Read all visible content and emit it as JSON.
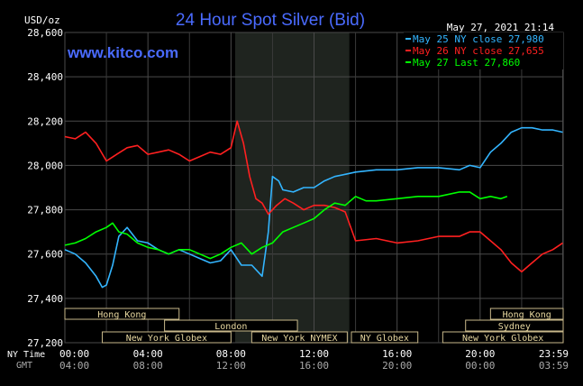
{
  "chart_data": {
    "type": "line",
    "title": "24 Hour Spot Silver (Bid)",
    "watermark": "www.kitco.com",
    "timestamp": "May 27, 2021 21:14",
    "ylabel": "USD/oz",
    "ylim": [
      27.2,
      28.6
    ],
    "yticks": [
      "28,600",
      "28,400",
      "28,200",
      "28,000",
      "27,800",
      "27,600",
      "27,400",
      "27,200"
    ],
    "yticks_values": [
      28.6,
      28.4,
      28.2,
      28.0,
      27.8,
      27.6,
      27.4,
      27.2
    ],
    "x_range_hours": [
      0,
      24
    ],
    "xticks_ny": [
      "00:00",
      "04:00",
      "08:00",
      "12:00",
      "16:00",
      "20:00",
      "23:59"
    ],
    "xticks_gmt": [
      "04:00",
      "08:00",
      "12:00",
      "16:00",
      "20:00",
      "00:00",
      "03:59"
    ],
    "xticks_hours": [
      0,
      4,
      8,
      12,
      16,
      20,
      23.98
    ],
    "ny_time_label": "NY Time",
    "gmt_label": "GMT",
    "nymex_hours": [
      8.2,
      13.7
    ],
    "markets": [
      {
        "label": "Hong Kong",
        "start": 0,
        "end": 5.5,
        "row": 0
      },
      {
        "label": "Hong Kong",
        "start": 20.5,
        "end": 24,
        "row": 0
      },
      {
        "label": "London",
        "start": 4.8,
        "end": 11.2,
        "row": 1
      },
      {
        "label": "Sydney",
        "start": 19.3,
        "end": 24,
        "row": 1
      },
      {
        "label": "New York Globex",
        "start": 1.8,
        "end": 8.0,
        "row": 2
      },
      {
        "label": "New York NYMEX",
        "start": 9.0,
        "end": 13.6,
        "row": 2
      },
      {
        "label": "NY Globex",
        "start": 13.8,
        "end": 17.0,
        "row": 2
      },
      {
        "label": "New York Globex",
        "start": 18.2,
        "end": 24,
        "row": 2
      }
    ],
    "legend_position": "top-right",
    "series": [
      {
        "name": "May 25",
        "legend": "May 25 NY close 27,980",
        "color": "#33b5ff",
        "x": [
          0,
          0.5,
          1.0,
          1.5,
          1.8,
          2.0,
          2.3,
          2.6,
          3.0,
          3.5,
          4.0,
          4.5,
          5.0,
          5.5,
          6.0,
          6.5,
          7.0,
          7.5,
          8.0,
          8.5,
          9.0,
          9.5,
          9.8,
          10.0,
          10.3,
          10.5,
          11.0,
          11.5,
          12.0,
          12.5,
          13.0,
          13.5,
          14.0,
          15.0,
          16.0,
          17.0,
          18.0,
          19.0,
          19.5,
          20.0,
          20.5,
          21.0,
          21.5,
          22.0,
          22.5,
          23.0,
          23.5,
          23.98
        ],
        "values": [
          27.62,
          27.6,
          27.56,
          27.5,
          27.45,
          27.46,
          27.55,
          27.68,
          27.72,
          27.66,
          27.65,
          27.62,
          27.6,
          27.62,
          27.6,
          27.58,
          27.56,
          27.57,
          27.62,
          27.55,
          27.55,
          27.5,
          27.7,
          27.95,
          27.93,
          27.89,
          27.88,
          27.9,
          27.9,
          27.93,
          27.95,
          27.96,
          27.97,
          27.98,
          27.98,
          27.99,
          27.99,
          27.98,
          28.0,
          27.99,
          28.06,
          28.1,
          28.15,
          28.17,
          28.17,
          28.16,
          28.16,
          28.15
        ]
      },
      {
        "name": "May 26",
        "legend": "May 26 NY close 27,655",
        "color": "#ff2020",
        "x": [
          0,
          0.5,
          1.0,
          1.5,
          2.0,
          2.5,
          3.0,
          3.5,
          4.0,
          4.5,
          5.0,
          5.5,
          6.0,
          6.5,
          7.0,
          7.5,
          8.0,
          8.3,
          8.6,
          8.9,
          9.2,
          9.5,
          9.8,
          10.2,
          10.6,
          11.0,
          11.5,
          12.0,
          12.5,
          13.0,
          13.5,
          14.0,
          15.0,
          16.0,
          17.0,
          18.0,
          19.0,
          19.5,
          20.0,
          20.5,
          21.0,
          21.5,
          22.0,
          22.5,
          23.0,
          23.5,
          23.98
        ],
        "values": [
          28.13,
          28.12,
          28.15,
          28.1,
          28.02,
          28.05,
          28.08,
          28.09,
          28.05,
          28.06,
          28.07,
          28.05,
          28.02,
          28.04,
          28.06,
          28.05,
          28.08,
          28.2,
          28.1,
          27.95,
          27.85,
          27.83,
          27.78,
          27.82,
          27.85,
          27.83,
          27.8,
          27.82,
          27.82,
          27.81,
          27.79,
          27.66,
          27.67,
          27.65,
          27.66,
          27.68,
          27.68,
          27.7,
          27.7,
          27.66,
          27.62,
          27.56,
          27.52,
          27.56,
          27.6,
          27.62,
          27.65
        ]
      },
      {
        "name": "May 27",
        "legend": "May 27 Last 27,860",
        "color": "#00ff00",
        "x": [
          0,
          0.5,
          1.0,
          1.5,
          2.0,
          2.3,
          2.6,
          3.0,
          3.5,
          4.0,
          4.5,
          5.0,
          5.5,
          6.0,
          6.5,
          7.0,
          7.5,
          8.0,
          8.5,
          9.0,
          9.5,
          10.0,
          10.5,
          11.0,
          11.5,
          12.0,
          12.5,
          13.0,
          13.5,
          14.0,
          14.5,
          15.0,
          16.0,
          17.0,
          18.0,
          19.0,
          19.5,
          20.0,
          20.5,
          21.0,
          21.3
        ],
        "values": [
          27.64,
          27.65,
          27.67,
          27.7,
          27.72,
          27.74,
          27.7,
          27.69,
          27.65,
          27.63,
          27.62,
          27.6,
          27.62,
          27.62,
          27.6,
          27.58,
          27.6,
          27.63,
          27.65,
          27.6,
          27.63,
          27.65,
          27.7,
          27.72,
          27.74,
          27.76,
          27.8,
          27.83,
          27.82,
          27.86,
          27.84,
          27.84,
          27.85,
          27.86,
          27.86,
          27.88,
          27.88,
          27.85,
          27.86,
          27.85,
          27.86
        ]
      }
    ]
  }
}
